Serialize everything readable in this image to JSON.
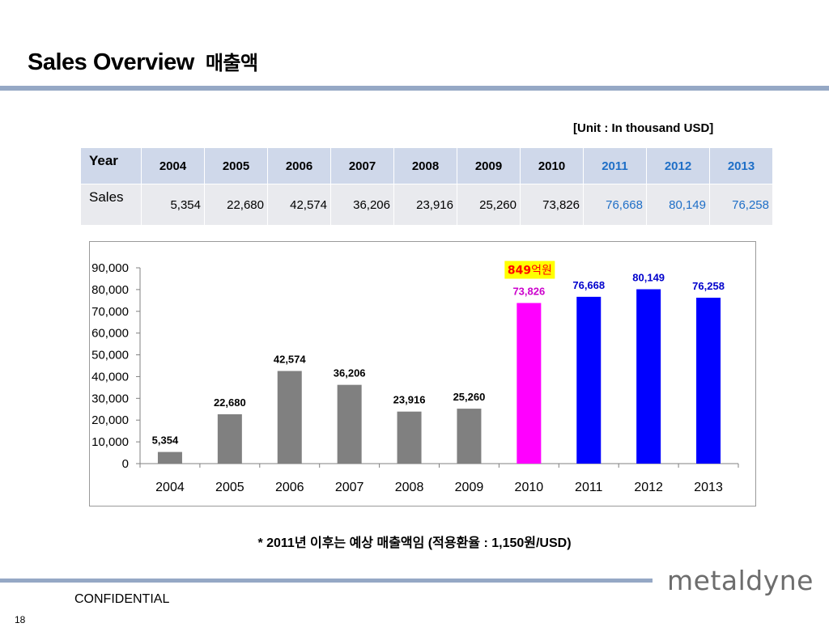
{
  "slide": {
    "title": "Sales Overview",
    "title_kr": "매출액",
    "unit": "[Unit : In thousand USD]",
    "note": "* 2011년 이후는 예상 매출액임 (적용환율 : 1,150원/USD)",
    "confidential": "CONFIDENTIAL",
    "page_number": "18",
    "logo_text": "metaldyne"
  },
  "table": {
    "row1_label": "Year",
    "row2_label": "Sales",
    "years": [
      "2004",
      "2005",
      "2006",
      "2007",
      "2008",
      "2009",
      "2010",
      "2011",
      "2012",
      "2013"
    ],
    "sales": [
      "5,354",
      "22,680",
      "42,574",
      "36,206",
      "23,916",
      "25,260",
      "73,826",
      "76,668",
      "80,149",
      "76,258"
    ],
    "forecast_color": "#1f6fc7"
  },
  "chart_data": {
    "type": "bar",
    "categories": [
      "2004",
      "2005",
      "2006",
      "2007",
      "2008",
      "2009",
      "2010",
      "2011",
      "2012",
      "2013"
    ],
    "values": [
      5354,
      22680,
      42574,
      36206,
      23916,
      25260,
      73826,
      76668,
      80149,
      76258
    ],
    "value_labels": [
      "5,354",
      "22,680",
      "42,574",
      "36,206",
      "23,916",
      "25,260",
      "73,826",
      "76,668",
      "80,149",
      "76,258"
    ],
    "bar_colors": [
      "#808080",
      "#808080",
      "#808080",
      "#808080",
      "#808080",
      "#808080",
      "#ff00ff",
      "#0000ff",
      "#0000ff",
      "#0000ff"
    ],
    "label_colors": [
      "#000000",
      "#000000",
      "#000000",
      "#000000",
      "#000000",
      "#000000",
      "#cc00cc",
      "#0000cc",
      "#0000cc",
      "#0000cc"
    ],
    "ylim": [
      0,
      90000
    ],
    "yticks": [
      0,
      10000,
      20000,
      30000,
      40000,
      50000,
      60000,
      70000,
      80000,
      90000
    ],
    "ytick_labels": [
      "0",
      "10,000",
      "20,000",
      "30,000",
      "40,000",
      "50,000",
      "60,000",
      "70,000",
      "80,000",
      "90,000"
    ],
    "annotation": {
      "text_num": "849",
      "text_kr": "억원",
      "category": "2010",
      "color": "#ff0000",
      "background": "#ffff00"
    },
    "grid": false,
    "legend": "none"
  }
}
